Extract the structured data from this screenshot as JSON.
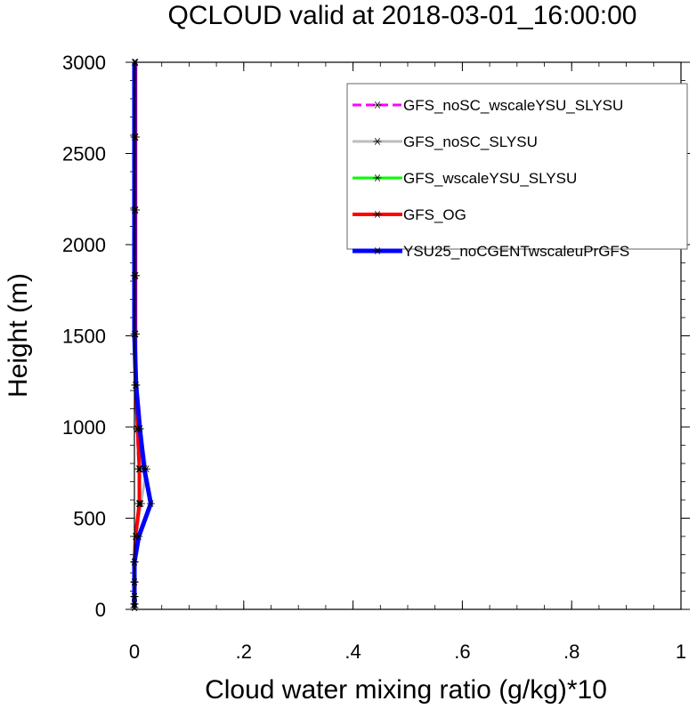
{
  "chart_data": {
    "type": "line",
    "title": "QCLOUD valid at 2018-03-01_16:00:00",
    "xlabel": "Cloud water mixing ratio (g/kg)*10",
    "ylabel": "Height (m)",
    "xlim": [
      0,
      1
    ],
    "ylim": [
      0,
      3000
    ],
    "x_ticks": [
      {
        "value": 0,
        "label": "0"
      },
      {
        "value": 0.2,
        "label": ".2"
      },
      {
        "value": 0.4,
        "label": ".4"
      },
      {
        "value": 0.6,
        "label": ".6"
      },
      {
        "value": 0.8,
        "label": ".8"
      },
      {
        "value": 1.0,
        "label": "1"
      }
    ],
    "y_ticks": [
      {
        "value": 0,
        "label": "0"
      },
      {
        "value": 500,
        "label": "500"
      },
      {
        "value": 1000,
        "label": "1000"
      },
      {
        "value": 1500,
        "label": "1500"
      },
      {
        "value": 2000,
        "label": "2000"
      },
      {
        "value": 2500,
        "label": "2500"
      },
      {
        "value": 3000,
        "label": "3000"
      }
    ],
    "heights": [
      10,
      30,
      70,
      150,
      260,
      400,
      580,
      770,
      990,
      1230,
      1510,
      1830,
      2190,
      2590,
      3000
    ],
    "legend_position": "top-right",
    "grid": false,
    "series": [
      {
        "name": "GFS_noSC_wscaleYSU_SLYSU",
        "color": "#ff00ff",
        "dash": "dashed",
        "line_width": 3,
        "values": [
          0,
          0,
          0,
          0,
          0,
          0.002,
          0.01,
          0.008,
          0.005,
          0.002,
          0.002,
          0.002,
          0.002,
          0.002,
          0.002
        ]
      },
      {
        "name": "GFS_noSC_SLYSU",
        "color": "#bdbdbd",
        "dash": "solid",
        "line_width": 3,
        "values": [
          0,
          0,
          0,
          0,
          0,
          0.003,
          0.012,
          0.022,
          0.01,
          0.002,
          0.002,
          0.002,
          0.002,
          0.002,
          0.002
        ]
      },
      {
        "name": "GFS_wscaleYSU_SLYSU",
        "color": "#00ff00",
        "dash": "solid",
        "line_width": 3,
        "values": [
          0,
          0,
          0,
          0,
          0,
          0.002,
          0.008,
          0.01,
          0.005,
          0.002,
          0.002,
          0.002,
          0.002,
          0.002,
          0.002
        ]
      },
      {
        "name": "GFS_OG",
        "color": "#ff0000",
        "dash": "solid",
        "line_width": 4,
        "values": [
          0,
          0,
          0,
          0,
          0,
          0.002,
          0.009,
          0.009,
          0.006,
          0.002,
          0.002,
          0.002,
          0.002,
          0.002,
          0.002
        ]
      },
      {
        "name": "YSU25_noCGENTwscaleuPrGFS",
        "color": "#0000ff",
        "dash": "solid",
        "line_width": 5,
        "values": [
          0,
          0,
          0,
          0,
          0,
          0.008,
          0.03,
          0.018,
          0.01,
          0.003,
          0,
          0,
          0,
          0,
          0
        ]
      }
    ]
  }
}
